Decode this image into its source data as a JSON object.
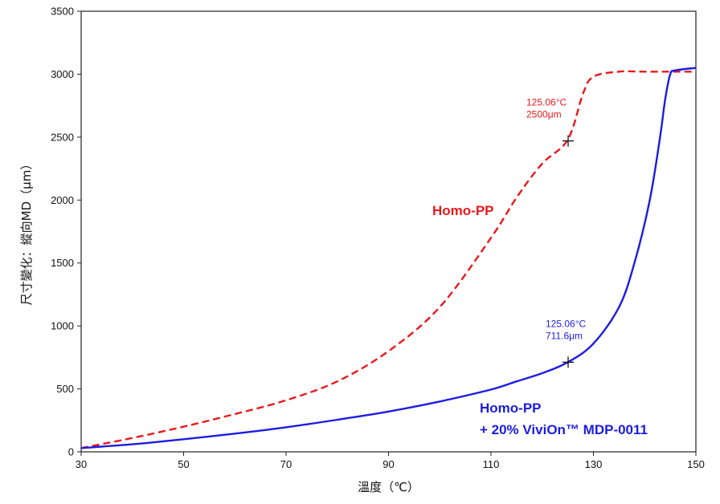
{
  "chart_data": {
    "type": "line",
    "xlabel": "溫度（℃）",
    "ylabel": "尺寸變化：縱向MD（μm）",
    "xlim": [
      30,
      150
    ],
    "ylim": [
      0,
      3500
    ],
    "xticks": [
      30,
      50,
      70,
      90,
      110,
      130,
      150
    ],
    "yticks": [
      0,
      500,
      1000,
      1500,
      2000,
      2500,
      3000,
      3500
    ],
    "grid": false,
    "series": [
      {
        "name": "Homo-PP",
        "color": "#e8191c",
        "style": "dashed",
        "x": [
          30,
          40,
          50,
          60,
          70,
          80,
          90,
          100,
          110,
          115,
          120,
          125,
          128,
          130,
          135,
          140,
          150
        ],
        "y": [
          30,
          110,
          200,
          300,
          410,
          560,
          800,
          1150,
          1700,
          2020,
          2290,
          2480,
          2850,
          2980,
          3020,
          3020,
          3020
        ]
      },
      {
        "name": "Homo-PP\n+ 20% ViviOn™ MDP-0011",
        "label_lines": [
          "Homo-PP",
          "+ 20% ViviOn™ MDP-0011"
        ],
        "color": "#1c1ce0",
        "style": "solid",
        "x": [
          30,
          40,
          50,
          60,
          70,
          80,
          90,
          100,
          110,
          115,
          120,
          125,
          130,
          135,
          138,
          141,
          143,
          144,
          145,
          146,
          150
        ],
        "y": [
          30,
          60,
          100,
          145,
          195,
          255,
          320,
          400,
          495,
          560,
          625,
          712,
          860,
          1150,
          1500,
          2000,
          2500,
          2800,
          3000,
          3030,
          3050
        ]
      }
    ],
    "annotations": [
      {
        "series": 0,
        "x": 125.06,
        "y": 2470,
        "lines": [
          "125.06°C",
          "2500μm"
        ],
        "color": "#e8191c"
      },
      {
        "series": 1,
        "x": 125.06,
        "y": 712,
        "lines": [
          "125.06°C",
          "711.6μm"
        ],
        "color": "#1c1ce0"
      }
    ]
  }
}
